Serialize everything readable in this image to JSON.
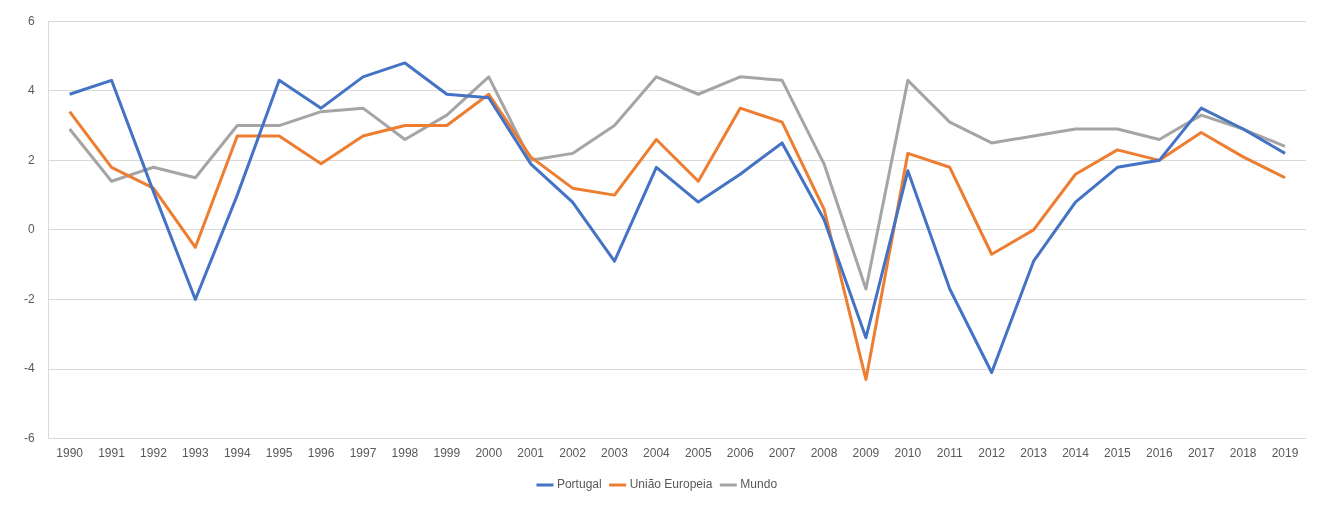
{
  "chart_data": {
    "type": "line",
    "categories": [
      "1990",
      "1991",
      "1992",
      "1993",
      "1994",
      "1995",
      "1996",
      "1997",
      "1998",
      "1999",
      "2000",
      "2001",
      "2002",
      "2003",
      "2004",
      "2005",
      "2006",
      "2007",
      "2008",
      "2009",
      "2010",
      "2011",
      "2012",
      "2013",
      "2014",
      "2015",
      "2016",
      "2017",
      "2018",
      "2019"
    ],
    "series": [
      {
        "name": "Portugal",
        "color": "#4472c4",
        "values": [
          3.9,
          4.3,
          1.1,
          -2.0,
          1.0,
          4.3,
          3.5,
          4.4,
          4.8,
          3.9,
          3.8,
          1.9,
          0.8,
          -0.9,
          1.8,
          0.8,
          1.6,
          2.5,
          0.3,
          -3.1,
          1.7,
          -1.7,
          -4.1,
          -0.9,
          0.8,
          1.8,
          2.0,
          3.5,
          2.9,
          2.2
        ]
      },
      {
        "name": "União Europeia",
        "color": "#ed7d31",
        "values": [
          3.4,
          1.8,
          1.2,
          -0.5,
          2.7,
          2.7,
          1.9,
          2.7,
          3.0,
          3.0,
          3.9,
          2.1,
          1.2,
          1.0,
          2.6,
          1.4,
          3.5,
          3.1,
          0.6,
          -4.3,
          2.2,
          1.8,
          -0.7,
          0.0,
          1.6,
          2.3,
          2.0,
          2.8,
          2.1,
          1.5
        ]
      },
      {
        "name": "Mundo",
        "color": "#a5a5a5",
        "values": [
          2.9,
          1.4,
          1.8,
          1.5,
          3.0,
          3.0,
          3.4,
          3.5,
          2.6,
          3.3,
          4.4,
          2.0,
          2.2,
          3.0,
          4.4,
          3.9,
          4.4,
          4.3,
          1.9,
          -1.7,
          4.3,
          3.1,
          2.5,
          2.7,
          2.9,
          2.9,
          2.6,
          3.3,
          2.9,
          2.4
        ]
      }
    ],
    "ylim": [
      -6,
      6
    ],
    "yticks": [
      -6,
      -4,
      -2,
      0,
      2,
      4,
      6
    ],
    "grid": "y",
    "legend": "bottom",
    "marker": "none",
    "line_style": "solid"
  }
}
